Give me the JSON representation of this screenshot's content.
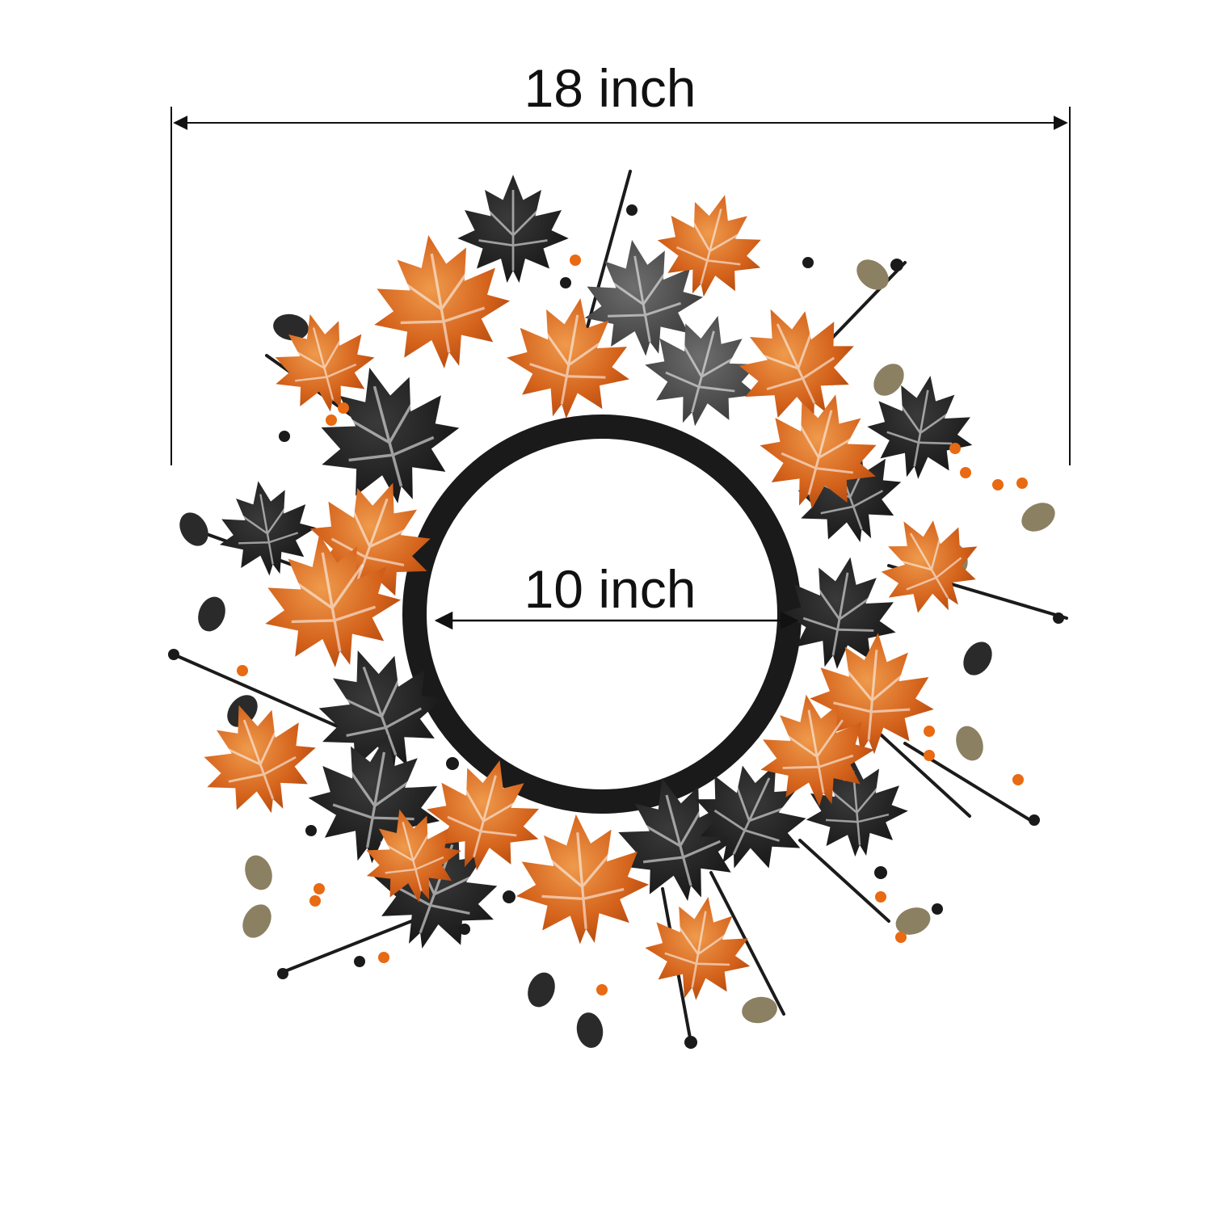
{
  "dimensions": {
    "outer_width_label": "18 inch",
    "inner_width_label": "10 inch"
  },
  "colors": {
    "background": "#ffffff",
    "leaf_orange": "#d4621b",
    "leaf_orange_light": "#e0873c",
    "leaf_black": "#1e1e1e",
    "leaf_gray": "#4a4a4a",
    "berry_orange": "#e86a12",
    "eucalyptus_gold": "#8b8061",
    "line": "#111111"
  }
}
